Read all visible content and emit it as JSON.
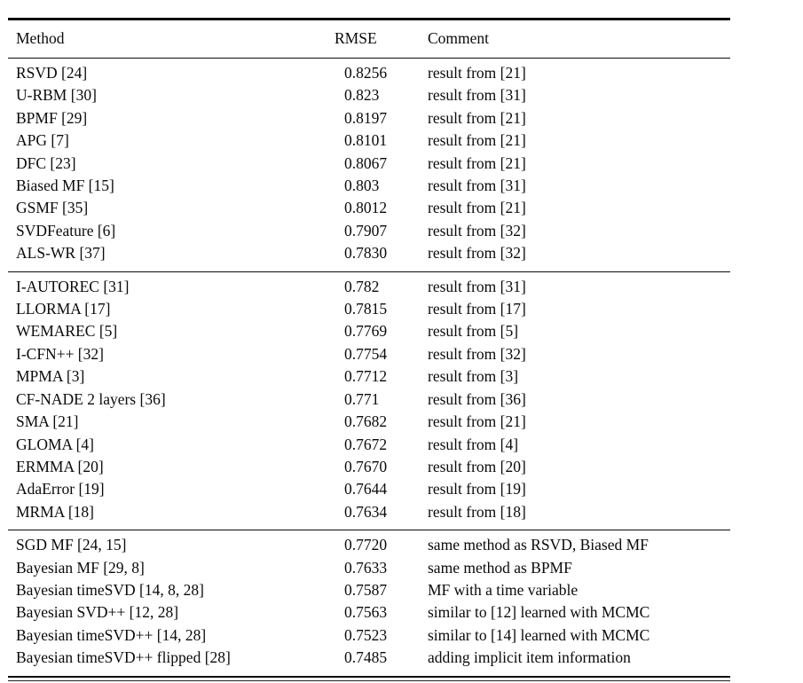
{
  "table": {
    "columns": [
      "Method",
      "RMSE",
      "Comment"
    ],
    "groups": [
      {
        "rows": [
          {
            "method": "RSVD [24]",
            "rmse": "0.8256",
            "comment": "result from [21]"
          },
          {
            "method": "U-RBM [30]",
            "rmse": "0.823",
            "comment": "result from [31]"
          },
          {
            "method": "BPMF [29]",
            "rmse": "0.8197",
            "comment": "result from [21]"
          },
          {
            "method": "APG [7]",
            "rmse": "0.8101",
            "comment": "result from [21]"
          },
          {
            "method": "DFC [23]",
            "rmse": "0.8067",
            "comment": "result from [21]"
          },
          {
            "method": "Biased MF [15]",
            "rmse": "0.803",
            "comment": "result from [31]"
          },
          {
            "method": "GSMF [35]",
            "rmse": "0.8012",
            "comment": "result from [21]"
          },
          {
            "method": "SVDFeature [6]",
            "rmse": "0.7907",
            "comment": "result from [32]"
          },
          {
            "method": "ALS-WR [37]",
            "rmse": "0.7830",
            "comment": "result from [32]"
          }
        ]
      },
      {
        "rows": [
          {
            "method": "I-AUTOREC [31]",
            "rmse": "0.782",
            "comment": "result from [31]"
          },
          {
            "method": "LLORMA [17]",
            "rmse": "0.7815",
            "comment": "result from [17]"
          },
          {
            "method": "WEMAREC [5]",
            "rmse": "0.7769",
            "comment": "result from [5]"
          },
          {
            "method": "I-CFN++ [32]",
            "rmse": "0.7754",
            "comment": "result from [32]"
          },
          {
            "method": "MPMA [3]",
            "rmse": "0.7712",
            "comment": "result from [3]"
          },
          {
            "method": "CF-NADE 2 layers  [36]",
            "rmse": "0.771",
            "comment": "result from [36]"
          },
          {
            "method": "SMA [21]",
            "rmse": "0.7682",
            "comment": "result from [21]"
          },
          {
            "method": "GLOMA [4]",
            "rmse": "0.7672",
            "comment": "result from [4]"
          },
          {
            "method": "ERMMA [20]",
            "rmse": "0.7670",
            "comment": "result from [20]"
          },
          {
            "method": "AdaError [19]",
            "rmse": "0.7644",
            "comment": "result from [19]"
          },
          {
            "method": "MRMA [18]",
            "rmse": "0.7634",
            "comment": "result from [18]"
          }
        ]
      },
      {
        "rows": [
          {
            "method": "SGD MF [24, 15]",
            "rmse": "0.7720",
            "comment": "same method as RSVD, Biased MF"
          },
          {
            "method": "Bayesian MF [29, 8]",
            "rmse": "0.7633",
            "comment": "same method as BPMF"
          },
          {
            "method": "Bayesian timeSVD [14, 8, 28]",
            "rmse": "0.7587",
            "comment": "MF with a time variable"
          },
          {
            "method": "Bayesian SVD++ [12, 28]",
            "rmse": "0.7563",
            "comment": "similar to [12] learned with MCMC"
          },
          {
            "method": "Bayesian timeSVD++ [14, 28]",
            "rmse": "0.7523",
            "comment": "similar to [14] learned with MCMC"
          },
          {
            "method": "Bayesian timeSVD++ flipped [28]",
            "rmse": "0.7485",
            "comment": "adding implicit item information"
          }
        ]
      }
    ]
  }
}
